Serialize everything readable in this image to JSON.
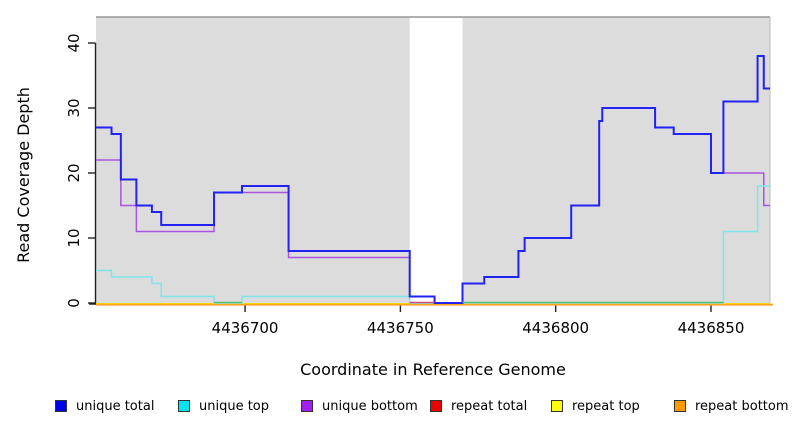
{
  "chart_data": {
    "type": "line",
    "subtype": "step-coverage-plot",
    "title": "",
    "xlabel": "Coordinate in Reference Genome",
    "ylabel": "Read Coverage Depth",
    "x_range": [
      4436652,
      4436869
    ],
    "y_range": [
      0,
      44
    ],
    "x_ticks": [
      4436700,
      4436750,
      4436800,
      4436850
    ],
    "y_ticks": [
      0,
      10,
      20,
      30,
      40
    ],
    "grid": false,
    "legend_position": "bottom",
    "background": "#FFFFFF",
    "panel_bg": "#DCDCDC",
    "panel_border_color": "#999999",
    "axis_color": "#222222",
    "gap_region": {
      "start": 4436753,
      "end": 4436770,
      "color": "#FFFFFF"
    },
    "series": [
      {
        "name": "repeat total",
        "color": "#E02020",
        "width": 1.5,
        "offset": 0.8,
        "points": [
          [
            4436652,
            0
          ]
        ]
      },
      {
        "name": "repeat top",
        "color": "#F0F000",
        "width": 1.5,
        "offset": 0.8,
        "points": [
          [
            4436652,
            0
          ]
        ]
      },
      {
        "name": "repeat bottom",
        "color": "#FFA424",
        "width": 2,
        "offset": 1.6,
        "points": [
          [
            4436652,
            0
          ]
        ]
      },
      {
        "name": "unique bottom",
        "color": "#A855E0",
        "width": 1.5,
        "offset": 0,
        "points": [
          [
            4436652,
            22
          ],
          [
            4436660,
            15
          ],
          [
            4436665,
            11
          ],
          [
            4436690,
            17
          ],
          [
            4436714,
            7
          ],
          [
            4436753,
            0
          ],
          [
            4436770,
            3
          ],
          [
            4436777,
            4
          ],
          [
            4436788,
            8
          ],
          [
            4436790,
            10
          ],
          [
            4436805,
            15
          ],
          [
            4436814,
            28
          ],
          [
            4436815,
            30
          ],
          [
            4436832,
            27
          ],
          [
            4436838,
            26
          ],
          [
            4436850,
            20
          ],
          [
            4436867,
            15
          ]
        ]
      },
      {
        "name": "unique top",
        "color": "#7CE6EC",
        "width": 1.5,
        "offset": 0,
        "points": [
          [
            4436652,
            5
          ],
          [
            4436657,
            4
          ],
          [
            4436670,
            3
          ],
          [
            4436673,
            1
          ],
          [
            4436690,
            0
          ],
          [
            4436699,
            1
          ],
          [
            4436753,
            0
          ],
          [
            4436854,
            11
          ],
          [
            4436865,
            18
          ]
        ]
      },
      {
        "name": "unique total",
        "color": "#2222F2",
        "width": 2,
        "offset": 0,
        "points": [
          [
            4436652,
            27
          ],
          [
            4436657,
            26
          ],
          [
            4436660,
            19
          ],
          [
            4436665,
            15
          ],
          [
            4436670,
            14
          ],
          [
            4436673,
            12
          ],
          [
            4436690,
            17
          ],
          [
            4436699,
            18
          ],
          [
            4436714,
            8
          ],
          [
            4436753,
            1
          ],
          [
            4436761,
            0
          ],
          [
            4436770,
            3
          ],
          [
            4436777,
            4
          ],
          [
            4436788,
            8
          ],
          [
            4436790,
            10
          ],
          [
            4436805,
            15
          ],
          [
            4436814,
            28
          ],
          [
            4436815,
            30
          ],
          [
            4436832,
            27
          ],
          [
            4436838,
            26
          ],
          [
            4436850,
            20
          ],
          [
            4436854,
            31
          ],
          [
            4436865,
            38
          ],
          [
            4436867,
            33
          ]
        ]
      }
    ],
    "baseline_overlaps": [
      {
        "color": "#5CBB6C",
        "start": 4436690,
        "end": 4436699,
        "value": 0
      },
      {
        "color": "#5CBB6C",
        "start": 4436770,
        "end": 4436854,
        "value": 0
      },
      {
        "color": "#D14A70",
        "start": 4436753,
        "end": 4436761,
        "value": 0
      }
    ],
    "legend": [
      {
        "label": "unique total",
        "color": "#0000EE"
      },
      {
        "label": "unique top",
        "color": "#00E5EE"
      },
      {
        "label": "unique bottom",
        "color": "#A020F0"
      },
      {
        "label": "repeat total",
        "color": "#EE0000"
      },
      {
        "label": "repeat top",
        "color": "#FFFF00"
      },
      {
        "label": "repeat bottom",
        "color": "#FF9900"
      }
    ]
  }
}
